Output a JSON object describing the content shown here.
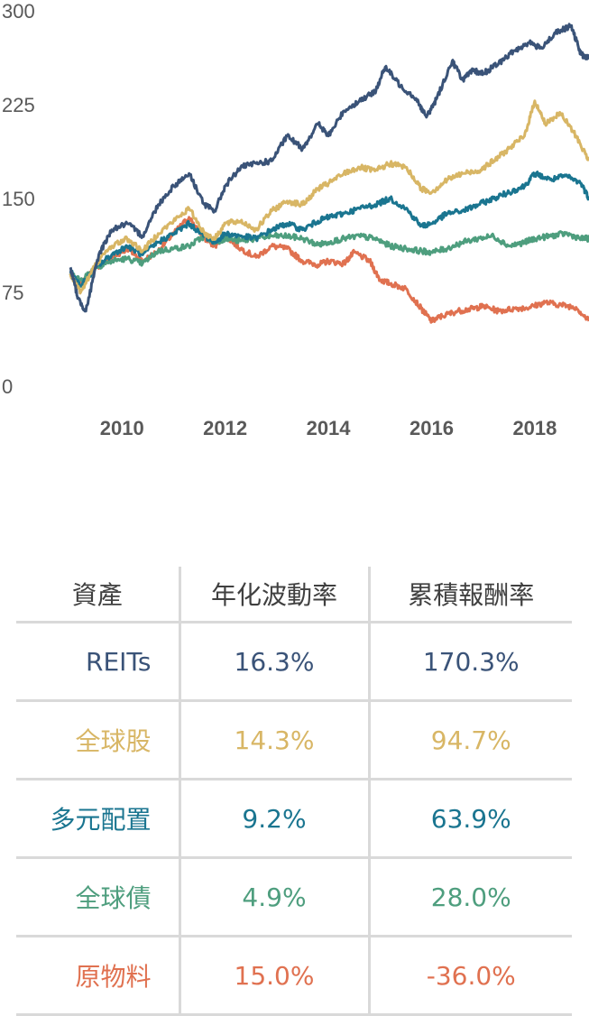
{
  "chart_data": {
    "type": "line",
    "ylim": [
      0,
      300
    ],
    "yticks": [
      "300",
      "225",
      "150",
      "75",
      "0"
    ],
    "xlim": [
      2009.0,
      2019.05
    ],
    "xticks": [
      "2010",
      "2012",
      "2014",
      "2016",
      "2018"
    ],
    "grid": false,
    "series": [
      {
        "name": "原物料",
        "color": "#e07150",
        "points": [
          [
            2009.0,
            88
          ],
          [
            2009.2,
            82
          ],
          [
            2009.5,
            95
          ],
          [
            2009.8,
            102
          ],
          [
            2010.1,
            110
          ],
          [
            2010.4,
            100
          ],
          [
            2010.7,
            108
          ],
          [
            2011.0,
            122
          ],
          [
            2011.3,
            135
          ],
          [
            2011.6,
            118
          ],
          [
            2011.8,
            112
          ],
          [
            2012.0,
            120
          ],
          [
            2012.3,
            110
          ],
          [
            2012.6,
            103
          ],
          [
            2012.9,
            112
          ],
          [
            2013.2,
            110
          ],
          [
            2013.5,
            100
          ],
          [
            2013.8,
            97
          ],
          [
            2014.0,
            100
          ],
          [
            2014.3,
            98
          ],
          [
            2014.5,
            107
          ],
          [
            2014.8,
            100
          ],
          [
            2015.0,
            85
          ],
          [
            2015.2,
            82
          ],
          [
            2015.5,
            78
          ],
          [
            2015.8,
            62
          ],
          [
            2016.0,
            52
          ],
          [
            2016.2,
            56
          ],
          [
            2016.5,
            60
          ],
          [
            2016.8,
            62
          ],
          [
            2017.0,
            64
          ],
          [
            2017.3,
            60
          ],
          [
            2017.6,
            62
          ],
          [
            2017.9,
            63
          ],
          [
            2018.2,
            67
          ],
          [
            2018.5,
            65
          ],
          [
            2018.8,
            63
          ],
          [
            2019.05,
            52
          ]
        ]
      },
      {
        "name": "全球債",
        "color": "#4e9e7e",
        "points": [
          [
            2009.0,
            90
          ],
          [
            2009.2,
            85
          ],
          [
            2009.5,
            95
          ],
          [
            2009.8,
            100
          ],
          [
            2010.1,
            102
          ],
          [
            2010.4,
            98
          ],
          [
            2010.7,
            108
          ],
          [
            2011.0,
            110
          ],
          [
            2011.3,
            112
          ],
          [
            2011.6,
            120
          ],
          [
            2011.8,
            115
          ],
          [
            2012.0,
            118
          ],
          [
            2012.3,
            116
          ],
          [
            2012.6,
            118
          ],
          [
            2012.9,
            120
          ],
          [
            2013.2,
            120
          ],
          [
            2013.5,
            118
          ],
          [
            2013.8,
            113
          ],
          [
            2014.0,
            115
          ],
          [
            2014.3,
            118
          ],
          [
            2014.6,
            120
          ],
          [
            2014.9,
            118
          ],
          [
            2015.2,
            112
          ],
          [
            2015.5,
            110
          ],
          [
            2015.8,
            108
          ],
          [
            2016.0,
            107
          ],
          [
            2016.3,
            110
          ],
          [
            2016.6,
            115
          ],
          [
            2016.9,
            118
          ],
          [
            2017.2,
            120
          ],
          [
            2017.5,
            112
          ],
          [
            2017.8,
            115
          ],
          [
            2018.0,
            118
          ],
          [
            2018.3,
            120
          ],
          [
            2018.6,
            122
          ],
          [
            2018.9,
            118
          ],
          [
            2019.05,
            118
          ]
        ]
      },
      {
        "name": "多元配置",
        "color": "#1a7590",
        "points": [
          [
            2009.0,
            92
          ],
          [
            2009.2,
            80
          ],
          [
            2009.5,
            95
          ],
          [
            2009.8,
            105
          ],
          [
            2010.1,
            112
          ],
          [
            2010.4,
            105
          ],
          [
            2010.7,
            115
          ],
          [
            2011.0,
            122
          ],
          [
            2011.3,
            130
          ],
          [
            2011.6,
            120
          ],
          [
            2011.8,
            115
          ],
          [
            2012.0,
            122
          ],
          [
            2012.3,
            120
          ],
          [
            2012.6,
            118
          ],
          [
            2012.9,
            125
          ],
          [
            2013.2,
            130
          ],
          [
            2013.5,
            125
          ],
          [
            2013.8,
            132
          ],
          [
            2014.0,
            135
          ],
          [
            2014.3,
            138
          ],
          [
            2014.6,
            142
          ],
          [
            2014.9,
            145
          ],
          [
            2015.2,
            150
          ],
          [
            2015.5,
            142
          ],
          [
            2015.8,
            128
          ],
          [
            2016.0,
            130
          ],
          [
            2016.3,
            138
          ],
          [
            2016.6,
            140
          ],
          [
            2016.9,
            145
          ],
          [
            2017.2,
            150
          ],
          [
            2017.5,
            155
          ],
          [
            2017.8,
            160
          ],
          [
            2018.0,
            170
          ],
          [
            2018.3,
            165
          ],
          [
            2018.6,
            168
          ],
          [
            2018.9,
            162
          ],
          [
            2019.05,
            150
          ]
        ]
      },
      {
        "name": "全球股",
        "color": "#d8b665",
        "points": [
          [
            2009.0,
            90
          ],
          [
            2009.2,
            75
          ],
          [
            2009.5,
            98
          ],
          [
            2009.8,
            112
          ],
          [
            2010.1,
            118
          ],
          [
            2010.4,
            108
          ],
          [
            2010.7,
            122
          ],
          [
            2011.0,
            132
          ],
          [
            2011.3,
            142
          ],
          [
            2011.6,
            122
          ],
          [
            2011.8,
            118
          ],
          [
            2012.0,
            130
          ],
          [
            2012.3,
            132
          ],
          [
            2012.6,
            125
          ],
          [
            2012.9,
            140
          ],
          [
            2013.2,
            148
          ],
          [
            2013.5,
            145
          ],
          [
            2013.8,
            158
          ],
          [
            2014.0,
            162
          ],
          [
            2014.3,
            170
          ],
          [
            2014.6,
            175
          ],
          [
            2014.9,
            172
          ],
          [
            2015.2,
            178
          ],
          [
            2015.5,
            175
          ],
          [
            2015.8,
            158
          ],
          [
            2016.0,
            155
          ],
          [
            2016.3,
            165
          ],
          [
            2016.6,
            170
          ],
          [
            2016.9,
            172
          ],
          [
            2017.2,
            180
          ],
          [
            2017.5,
            190
          ],
          [
            2017.8,
            200
          ],
          [
            2018.0,
            228
          ],
          [
            2018.2,
            210
          ],
          [
            2018.5,
            218
          ],
          [
            2018.8,
            200
          ],
          [
            2019.05,
            180
          ]
        ]
      },
      {
        "name": "REITs",
        "color": "#3a5378",
        "points": [
          [
            2009.0,
            95
          ],
          [
            2009.15,
            70
          ],
          [
            2009.3,
            60
          ],
          [
            2009.55,
            105
          ],
          [
            2009.8,
            125
          ],
          [
            2010.1,
            130
          ],
          [
            2010.4,
            120
          ],
          [
            2010.7,
            145
          ],
          [
            2011.0,
            160
          ],
          [
            2011.3,
            170
          ],
          [
            2011.6,
            145
          ],
          [
            2011.8,
            140
          ],
          [
            2012.0,
            160
          ],
          [
            2012.3,
            175
          ],
          [
            2012.6,
            178
          ],
          [
            2012.9,
            180
          ],
          [
            2013.2,
            200
          ],
          [
            2013.5,
            190
          ],
          [
            2013.8,
            210
          ],
          [
            2014.0,
            200
          ],
          [
            2014.3,
            220
          ],
          [
            2014.6,
            228
          ],
          [
            2014.9,
            235
          ],
          [
            2015.1,
            255
          ],
          [
            2015.4,
            240
          ],
          [
            2015.7,
            230
          ],
          [
            2015.9,
            215
          ],
          [
            2016.1,
            230
          ],
          [
            2016.4,
            260
          ],
          [
            2016.6,
            245
          ],
          [
            2016.8,
            252
          ],
          [
            2017.0,
            250
          ],
          [
            2017.3,
            258
          ],
          [
            2017.6,
            268
          ],
          [
            2017.9,
            275
          ],
          [
            2018.1,
            270
          ],
          [
            2018.4,
            282
          ],
          [
            2018.7,
            288
          ],
          [
            2018.9,
            265
          ],
          [
            2019.05,
            262
          ]
        ]
      }
    ]
  },
  "table": {
    "headers": [
      "資產",
      "年化波動率",
      "累積報酬率"
    ],
    "rows": [
      {
        "asset": "REITs",
        "volatility": "16.3%",
        "return": "170.3%",
        "color": "#3a5378"
      },
      {
        "asset": "全球股",
        "volatility": "14.3%",
        "return": "94.7%",
        "color": "#d8b665"
      },
      {
        "asset": "多元配置",
        "volatility": "9.2%",
        "return": "63.9%",
        "color": "#1a7590"
      },
      {
        "asset": "全球債",
        "volatility": "4.9%",
        "return": "28.0%",
        "color": "#4e9e7e"
      },
      {
        "asset": "原物料",
        "volatility": "15.0%",
        "return": "-36.0%",
        "color": "#e07150"
      }
    ]
  }
}
